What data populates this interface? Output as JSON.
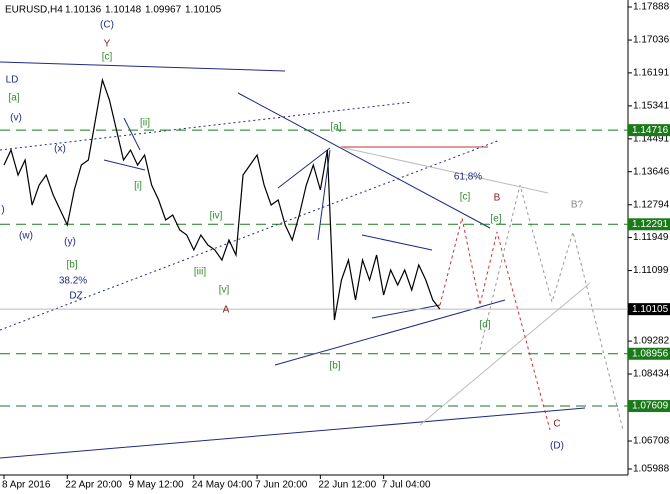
{
  "chart_data": {
    "type": "line",
    "title": "EURUSD,H4",
    "ohlc": [
      1.10136,
      1.10148,
      1.09967,
      1.10105
    ],
    "categories": [
      "8 Apr 2016",
      null,
      null,
      null,
      null,
      null,
      null,
      null,
      null,
      "22 Apr 20:00",
      null,
      null,
      null,
      null,
      null,
      null,
      null,
      null,
      "9 May 12:00",
      null,
      null,
      null,
      null,
      null,
      null,
      null,
      null,
      "24 May 04:00",
      null,
      null,
      null,
      null,
      null,
      null,
      null,
      null,
      "7 Jun 20:00",
      null,
      null,
      null,
      null,
      null,
      null,
      null,
      null,
      "22 Jun 12:00",
      null,
      null,
      null,
      null,
      null,
      null,
      null,
      null,
      "7 Jul 04:00",
      null,
      null,
      null,
      null,
      null,
      null,
      null,
      null
    ],
    "values": [
      1.13818,
      1.14204,
      1.1356,
      1.13946,
      1.12787,
      1.13302,
      1.1356,
      1.13045,
      1.12658,
      1.12272,
      1.13174,
      1.13818,
      1.13946,
      1.14977,
      1.16007,
      1.15492,
      1.14719,
      1.13946,
      1.14204,
      1.13818,
      1.14075,
      1.13302,
      1.12916,
      1.12401,
      1.1253,
      1.12143,
      1.12014,
      1.11628,
      1.12014,
      1.11757,
      1.11628,
      1.1137,
      1.11886,
      1.11499,
      1.1356,
      1.13818,
      1.14075,
      1.13302,
      1.12787,
      1.12916,
      1.12272,
      1.11886,
      1.1253,
      1.13302,
      1.13818,
      1.13174,
      1.14204,
      1.09825,
      1.10855,
      1.1137,
      1.1034,
      1.1137,
      1.10855,
      1.11499,
      1.10469,
      1.11113,
      1.10726,
      1.11113,
      1.10598,
      1.11242,
      1.10855,
      1.1034,
      1.10105
    ],
    "color": "#000000",
    "ylim": [
      1.05833,
      1.18068
    ],
    "yticks": [
      1.17888,
      1.17036,
      1.16191,
      1.15341,
      1.14491,
      1.13646,
      1.12794,
      1.11949,
      1.11099,
      1.09282,
      1.08434,
      1.06708,
      1.05988
    ],
    "levels": [
      1.14716,
      1.12291,
      1.08956,
      1.07609
    ],
    "level_color": "#1a7a1a",
    "last_price": 1.10105,
    "annotations": [
      {
        "text": "(C)",
        "color": "#1f2a80"
      },
      {
        "text": "Y",
        "color": "#8b1a1a"
      },
      {
        "text": "[c]",
        "color": "#2e8b2e"
      },
      {
        "text": "LD",
        "color": "#1f2a80"
      },
      {
        "text": "[a]",
        "color": "#2e8b2e"
      },
      {
        "text": "(v)",
        "color": "#1f2a80"
      },
      {
        "text": "(x)",
        "color": "#1f2a80"
      },
      {
        "text": "[ii]",
        "color": "#2e8b2e"
      },
      {
        "text": "[i]",
        "color": "#2e8b2e"
      },
      {
        "text": ")",
        "color": "#1f2a80"
      },
      {
        "text": "(w)",
        "color": "#1f2a80"
      },
      {
        "text": "(y)",
        "color": "#1f2a80"
      },
      {
        "text": "[b]",
        "color": "#2e8b2e"
      },
      {
        "text": "38.2%",
        "color": "#1f2a80"
      },
      {
        "text": "DZ",
        "color": "#1f2a80"
      },
      {
        "text": "[iv]",
        "color": "#2e8b2e"
      },
      {
        "text": "[iii]",
        "color": "#2e8b2e"
      },
      {
        "text": "[v]",
        "color": "#2e8b2e"
      },
      {
        "text": "A",
        "color": "#8b1a1a"
      },
      {
        "text": "[a]",
        "color": "#2e8b2e"
      },
      {
        "text": "61,8%",
        "color": "#1f2a80"
      },
      {
        "text": "[c]",
        "color": "#2e8b2e"
      },
      {
        "text": "B",
        "color": "#8b1a1a"
      },
      {
        "text": "[e]",
        "color": "#2e8b2e"
      },
      {
        "text": "B?",
        "color": "#888888"
      },
      {
        "text": "[d]",
        "color": "#2e8b2e"
      },
      {
        "text": "[b]",
        "color": "#2e8b2e"
      },
      {
        "text": "C",
        "color": "#8b1a1a"
      },
      {
        "text": "(D)",
        "color": "#1f2a80"
      }
    ]
  }
}
